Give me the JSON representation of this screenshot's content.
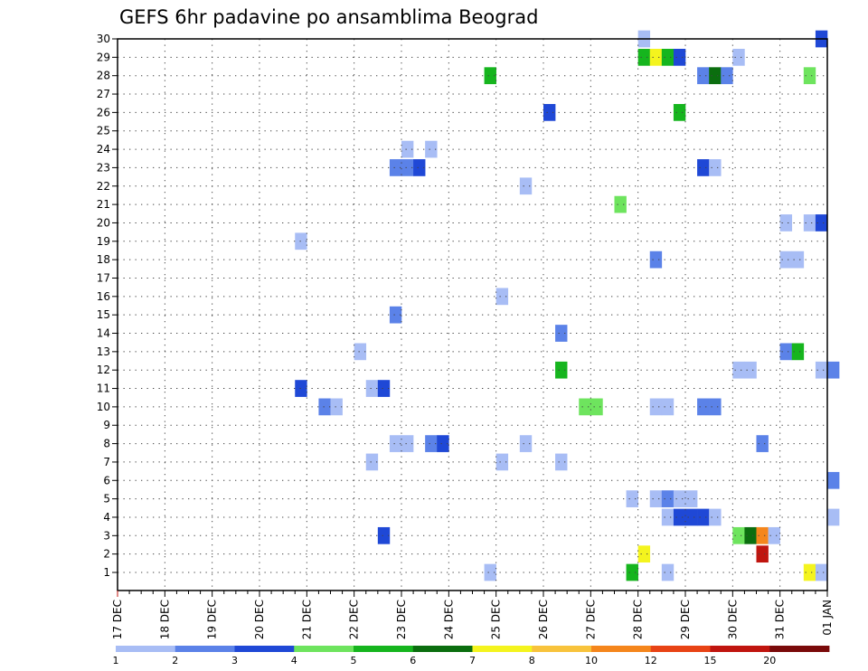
{
  "chart_data": {
    "type": "heatmap",
    "title": "GEFS 6hr padavine po ansamblima Beograd",
    "xlabel": "",
    "ylabel": "",
    "x_tick_labels": [
      "17 DEC",
      "18 DEC",
      "19 DEC",
      "20 DEC",
      "21 DEC",
      "22 DEC",
      "23 DEC",
      "24 DEC",
      "25 DEC",
      "26 DEC",
      "27 DEC",
      "28 DEC",
      "29 DEC",
      "30 DEC",
      "31 DEC",
      "01 JAN"
    ],
    "y_tick_labels": [
      "1",
      "2",
      "3",
      "4",
      "5",
      "6",
      "7",
      "8",
      "9",
      "10",
      "11",
      "12",
      "13",
      "14",
      "15",
      "16",
      "17",
      "18",
      "19",
      "20",
      "21",
      "22",
      "23",
      "24",
      "25",
      "26",
      "27",
      "28",
      "29",
      "30"
    ],
    "time_step_hours": 6,
    "grid": true,
    "colorbar": {
      "tick_labels": [
        "1",
        "2",
        "3",
        "4",
        "5",
        "6",
        "7",
        "8",
        "10",
        "12",
        "15",
        "20"
      ],
      "bins": [
        {
          "min": 1,
          "max": 2,
          "color": "#a8bdf5"
        },
        {
          "min": 2,
          "max": 3,
          "color": "#5b82e8"
        },
        {
          "min": 3,
          "max": 4,
          "color": "#1f48d6"
        },
        {
          "min": 4,
          "max": 5,
          "color": "#6ee45e"
        },
        {
          "min": 5,
          "max": 6,
          "color": "#16b51e"
        },
        {
          "min": 6,
          "max": 7,
          "color": "#0b6e0f"
        },
        {
          "min": 7,
          "max": 8,
          "color": "#f4f41e"
        },
        {
          "min": 8,
          "max": 10,
          "color": "#f8c33c"
        },
        {
          "min": 10,
          "max": 12,
          "color": "#f5861c"
        },
        {
          "min": 12,
          "max": 15,
          "color": "#e84315"
        },
        {
          "min": 15,
          "max": 20,
          "color": "#c0150f"
        },
        {
          "min": 20,
          "max": null,
          "color": "#7a0a0a"
        }
      ]
    },
    "cells": [
      {
        "member": 1,
        "time": "24 DEC 18Z",
        "bin": 1
      },
      {
        "member": 1,
        "time": "27 DEC 18Z",
        "bin": 5
      },
      {
        "member": 1,
        "time": "28 DEC 12Z",
        "bin": 1
      },
      {
        "member": 1,
        "time": "31 DEC 12Z",
        "bin": 7
      },
      {
        "member": 1,
        "time": "31 DEC 18Z",
        "bin": 1
      },
      {
        "member": 2,
        "time": "28 DEC 00Z",
        "bin": 7
      },
      {
        "member": 2,
        "time": "30 DEC 12Z",
        "bin": 11
      },
      {
        "member": 3,
        "time": "22 DEC 12Z",
        "bin": 3
      },
      {
        "member": 3,
        "time": "30 DEC 00Z",
        "bin": 4
      },
      {
        "member": 3,
        "time": "30 DEC 06Z",
        "bin": 6
      },
      {
        "member": 3,
        "time": "30 DEC 12Z",
        "bin": 9
      },
      {
        "member": 3,
        "time": "30 DEC 18Z",
        "bin": 1
      },
      {
        "member": 4,
        "time": "28 DEC 12Z",
        "bin": 1
      },
      {
        "member": 4,
        "time": "28 DEC 18Z",
        "bin": 3
      },
      {
        "member": 4,
        "time": "29 DEC 00Z",
        "bin": 3
      },
      {
        "member": 4,
        "time": "29 DEC 06Z",
        "bin": 3
      },
      {
        "member": 4,
        "time": "29 DEC 12Z",
        "bin": 1
      },
      {
        "member": 4,
        "time": "01 JAN 00Z",
        "bin": 1
      },
      {
        "member": 5,
        "time": "27 DEC 18Z",
        "bin": 1
      },
      {
        "member": 5,
        "time": "28 DEC 06Z",
        "bin": 1
      },
      {
        "member": 5,
        "time": "28 DEC 12Z",
        "bin": 2
      },
      {
        "member": 5,
        "time": "28 DEC 18Z",
        "bin": 1
      },
      {
        "member": 5,
        "time": "29 DEC 00Z",
        "bin": 1
      },
      {
        "member": 6,
        "time": "01 JAN 00Z",
        "bin": 2
      },
      {
        "member": 7,
        "time": "22 DEC 06Z",
        "bin": 1
      },
      {
        "member": 7,
        "time": "25 DEC 00Z",
        "bin": 1
      },
      {
        "member": 7,
        "time": "26 DEC 06Z",
        "bin": 1
      },
      {
        "member": 8,
        "time": "22 DEC 18Z",
        "bin": 1
      },
      {
        "member": 8,
        "time": "23 DEC 00Z",
        "bin": 1
      },
      {
        "member": 8,
        "time": "23 DEC 12Z",
        "bin": 2
      },
      {
        "member": 8,
        "time": "23 DEC 18Z",
        "bin": 3
      },
      {
        "member": 8,
        "time": "25 DEC 12Z",
        "bin": 1
      },
      {
        "member": 8,
        "time": "30 DEC 12Z",
        "bin": 2
      },
      {
        "member": 10,
        "time": "21 DEC 06Z",
        "bin": 2
      },
      {
        "member": 10,
        "time": "21 DEC 12Z",
        "bin": 1
      },
      {
        "member": 10,
        "time": "26 DEC 18Z",
        "bin": 4
      },
      {
        "member": 10,
        "time": "27 DEC 00Z",
        "bin": 4
      },
      {
        "member": 10,
        "time": "28 DEC 06Z",
        "bin": 1
      },
      {
        "member": 10,
        "time": "28 DEC 12Z",
        "bin": 1
      },
      {
        "member": 10,
        "time": "29 DEC 06Z",
        "bin": 2
      },
      {
        "member": 10,
        "time": "29 DEC 12Z",
        "bin": 2
      },
      {
        "member": 11,
        "time": "20 DEC 18Z",
        "bin": 3
      },
      {
        "member": 11,
        "time": "22 DEC 06Z",
        "bin": 1
      },
      {
        "member": 11,
        "time": "22 DEC 12Z",
        "bin": 3
      },
      {
        "member": 12,
        "time": "26 DEC 06Z",
        "bin": 5
      },
      {
        "member": 12,
        "time": "30 DEC 00Z",
        "bin": 1
      },
      {
        "member": 12,
        "time": "30 DEC 06Z",
        "bin": 1
      },
      {
        "member": 12,
        "time": "31 DEC 18Z",
        "bin": 1
      },
      {
        "member": 12,
        "time": "01 JAN 00Z",
        "bin": 2
      },
      {
        "member": 13,
        "time": "22 DEC 00Z",
        "bin": 1
      },
      {
        "member": 13,
        "time": "31 DEC 00Z",
        "bin": 2
      },
      {
        "member": 13,
        "time": "31 DEC 06Z",
        "bin": 5
      },
      {
        "member": 14,
        "time": "26 DEC 06Z",
        "bin": 2
      },
      {
        "member": 15,
        "time": "22 DEC 18Z",
        "bin": 2
      },
      {
        "member": 16,
        "time": "25 DEC 00Z",
        "bin": 1
      },
      {
        "member": 18,
        "time": "28 DEC 06Z",
        "bin": 2
      },
      {
        "member": 18,
        "time": "31 DEC 00Z",
        "bin": 1
      },
      {
        "member": 18,
        "time": "31 DEC 06Z",
        "bin": 1
      },
      {
        "member": 19,
        "time": "20 DEC 18Z",
        "bin": 1
      },
      {
        "member": 20,
        "time": "31 DEC 00Z",
        "bin": 1
      },
      {
        "member": 20,
        "time": "31 DEC 12Z",
        "bin": 1
      },
      {
        "member": 20,
        "time": "31 DEC 18Z",
        "bin": 3
      },
      {
        "member": 21,
        "time": "27 DEC 12Z",
        "bin": 4
      },
      {
        "member": 22,
        "time": "25 DEC 12Z",
        "bin": 1
      },
      {
        "member": 23,
        "time": "22 DEC 18Z",
        "bin": 2
      },
      {
        "member": 23,
        "time": "23 DEC 00Z",
        "bin": 2
      },
      {
        "member": 23,
        "time": "23 DEC 06Z",
        "bin": 3
      },
      {
        "member": 23,
        "time": "29 DEC 06Z",
        "bin": 3
      },
      {
        "member": 23,
        "time": "29 DEC 12Z",
        "bin": 1
      },
      {
        "member": 24,
        "time": "23 DEC 00Z",
        "bin": 1
      },
      {
        "member": 24,
        "time": "23 DEC 12Z",
        "bin": 1
      },
      {
        "member": 26,
        "time": "26 DEC 00Z",
        "bin": 3
      },
      {
        "member": 26,
        "time": "28 DEC 18Z",
        "bin": 5
      },
      {
        "member": 28,
        "time": "24 DEC 18Z",
        "bin": 5
      },
      {
        "member": 28,
        "time": "29 DEC 06Z",
        "bin": 2
      },
      {
        "member": 28,
        "time": "29 DEC 12Z",
        "bin": 6
      },
      {
        "member": 28,
        "time": "29 DEC 18Z",
        "bin": 2
      },
      {
        "member": 28,
        "time": "31 DEC 12Z",
        "bin": 4
      },
      {
        "member": 29,
        "time": "28 DEC 00Z",
        "bin": 5
      },
      {
        "member": 29,
        "time": "28 DEC 06Z",
        "bin": 7
      },
      {
        "member": 29,
        "time": "28 DEC 12Z",
        "bin": 5
      },
      {
        "member": 29,
        "time": "28 DEC 18Z",
        "bin": 3
      },
      {
        "member": 29,
        "time": "30 DEC 00Z",
        "bin": 1
      },
      {
        "member": 30,
        "time": "28 DEC 00Z",
        "bin": 1
      },
      {
        "member": 30,
        "time": "31 DEC 18Z",
        "bin": 3
      }
    ]
  }
}
